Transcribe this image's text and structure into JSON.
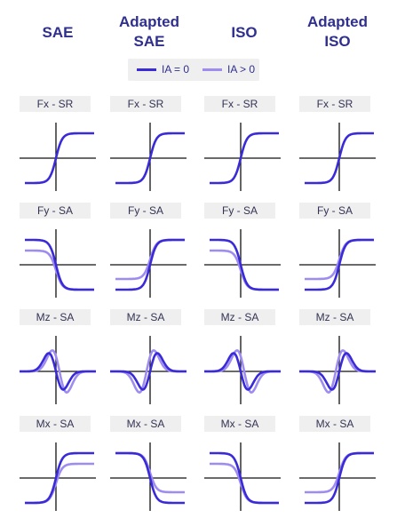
{
  "columns": [
    "SAE",
    "Adapted\nSAE",
    "ISO",
    "Adapted\nISO"
  ],
  "legend": {
    "items": [
      {
        "label": "IA = 0",
        "color": "#3a2bd8"
      },
      {
        "label": "IA > 0",
        "color": "#9e8cf0"
      }
    ]
  },
  "rows": [
    {
      "label": "Fx - SR",
      "shape": "sigmoid",
      "curves": [
        [
          1,
          1,
          1,
          1
        ],
        [
          0,
          0,
          0,
          0
        ]
      ]
    },
    {
      "label": "Fy - SA",
      "shape": "sigmoid",
      "curves": [
        [
          -1,
          1,
          -1,
          1
        ],
        [
          -1,
          1,
          -1,
          1
        ]
      ]
    },
    {
      "label": "Mz - SA",
      "shape": "wave",
      "curves": [
        [
          1,
          -1,
          1,
          -1
        ],
        [
          1,
          -1,
          1,
          -1
        ]
      ]
    },
    {
      "label": "Mx - SA",
      "shape": "sigmoid",
      "curves": [
        [
          1,
          -1,
          -1,
          1
        ],
        [
          1,
          -1,
          -1,
          1
        ]
      ]
    }
  ],
  "colors": {
    "axis": "#111111",
    "ia0": "#3a2bd8",
    "ia_pos": "#9e8cf0"
  }
}
